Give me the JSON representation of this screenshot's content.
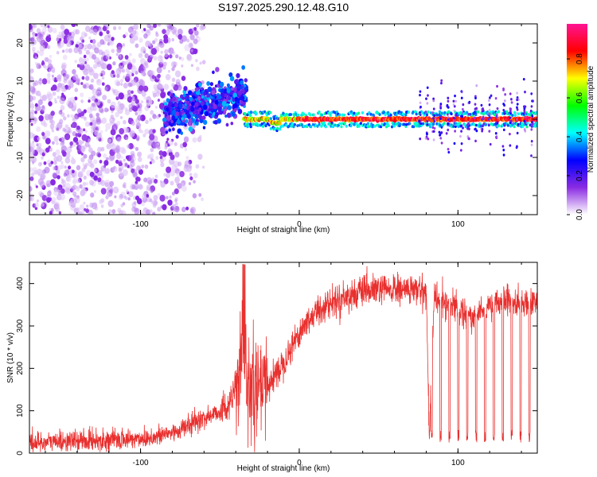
{
  "title": "S197.2025.290.12.48.G10",
  "colors": {
    "line": "#e8302e",
    "background": "#ffffff",
    "axis": "#000000",
    "colormap": [
      "#ffffff",
      "#8a2be2",
      "#0000ff",
      "#00ffff",
      "#00ff00",
      "#ffff00",
      "#ff0000",
      "#ff1493"
    ]
  },
  "chart_data": [
    {
      "type": "heatmap",
      "title": "",
      "xlabel": "Height of straight line (km)",
      "ylabel": "Frequency (Hz)",
      "xlim": [
        -170,
        150
      ],
      "ylim": [
        -25,
        25
      ],
      "xticks": [
        -100,
        0,
        100
      ],
      "xtick_labels": [
        "-100",
        "0",
        "100"
      ],
      "yticks": [
        -20,
        -10,
        0,
        10,
        20
      ],
      "ytick_labels": [
        "-20",
        "-10",
        "0",
        "10",
        "20"
      ],
      "grid": false,
      "colorbar": {
        "label": "Normalized spectral amplitude",
        "range": [
          0,
          0.98
        ],
        "ticks": [
          0.0,
          0.2,
          0.4,
          0.6,
          0.8
        ],
        "tick_labels": [
          "0.0",
          "0.2",
          "0.4",
          "0.6",
          "0.8"
        ]
      },
      "features": [
        {
          "region": "noise",
          "x_range": [
            -170,
            -85
          ],
          "freq_range": [
            -25,
            25
          ],
          "amplitude": 0.1
        },
        {
          "region": "fluctuating signal",
          "x_range": [
            -85,
            -35
          ],
          "freq_range": [
            -2,
            8
          ],
          "amplitude": 0.25
        },
        {
          "region": "stable carrier",
          "x_range": [
            -35,
            150
          ],
          "freq": 0,
          "amplitude": 0.9
        }
      ]
    },
    {
      "type": "line",
      "title": "",
      "xlabel": "Height of straight line (km)",
      "ylabel": "SNR (10 * v/v)",
      "xlim": [
        -170,
        150
      ],
      "ylim": [
        0,
        450
      ],
      "xticks": [
        -100,
        0,
        100
      ],
      "xtick_labels": [
        "-100",
        "0",
        "100"
      ],
      "yticks": [
        0,
        100,
        200,
        300,
        400
      ],
      "ytick_labels": [
        "0",
        "100",
        "200",
        "300",
        "400"
      ],
      "grid": false,
      "series": [
        {
          "x": [
            -170,
            -150,
            -130,
            -110,
            -90,
            -75,
            -65,
            -55,
            -45,
            -40,
            -35,
            -30,
            -25,
            -20,
            -15,
            -10,
            -5,
            0,
            5,
            10,
            15,
            20,
            30,
            40,
            50,
            60,
            70,
            80,
            82,
            85,
            90,
            100,
            110,
            120,
            130,
            140,
            150
          ],
          "y": [
            25,
            28,
            30,
            32,
            38,
            55,
            75,
            90,
            110,
            150,
            230,
            140,
            145,
            160,
            185,
            215,
            250,
            285,
            310,
            330,
            345,
            355,
            370,
            380,
            385,
            385,
            385,
            383,
            40,
            370,
            360,
            340,
            320,
            350,
            360,
            350,
            360
          ]
        }
      ]
    }
  ]
}
